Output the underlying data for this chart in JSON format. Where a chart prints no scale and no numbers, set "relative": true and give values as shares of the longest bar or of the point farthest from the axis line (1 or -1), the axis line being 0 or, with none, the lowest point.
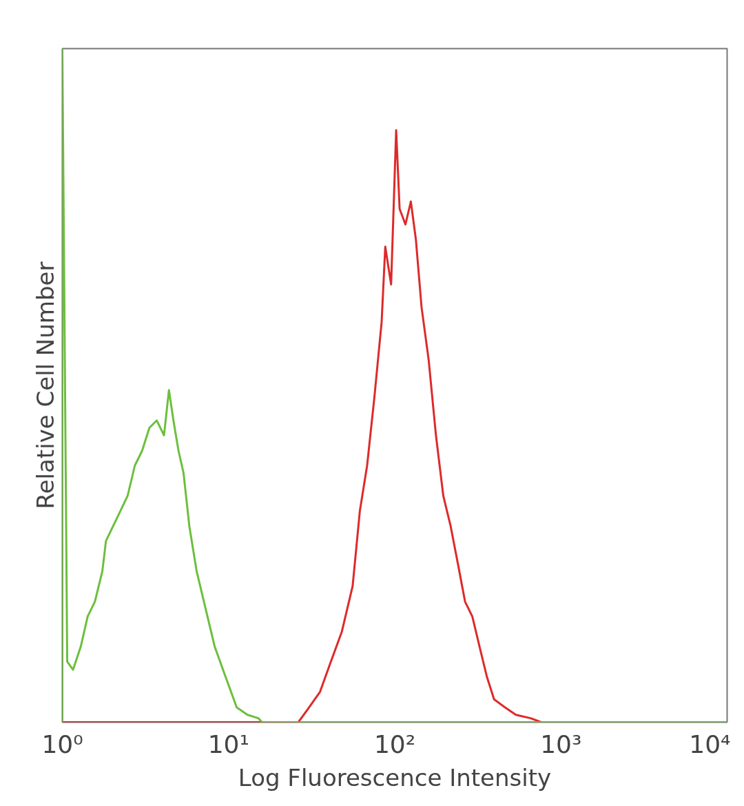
{
  "chart_data": {
    "type": "line",
    "relative": true,
    "log": "x",
    "grid": false,
    "line_style": "solid",
    "marker": "none",
    "xlabel": "Log Fluorescence Intensity",
    "ylabel": "Relative Cell Number",
    "xlim": [
      1,
      10000
    ],
    "xticks": [
      {
        "value": 1,
        "label": "10⁰"
      },
      {
        "value": 10,
        "label": "10¹"
      },
      {
        "value": 100,
        "label": "10²"
      },
      {
        "value": 1000,
        "label": "10³"
      },
      {
        "value": 10000,
        "label": "10⁴"
      }
    ],
    "series": [
      {
        "color": "#dd2a2a",
        "x": [
          1,
          26.3,
          30.5,
          35.5,
          41.3,
          48.0,
          55.8,
          61.7,
          68.2,
          75.4,
          83.4,
          87.7,
          95.1,
          102,
          107,
          116,
          125,
          134,
          145,
          160,
          177,
          196,
          217,
          240,
          265,
          293,
          324,
          359,
          396,
          461,
          536,
          656,
          762
        ],
        "values": [
          0,
          0,
          0.022,
          0.045,
          0.09,
          0.134,
          0.202,
          0.314,
          0.381,
          0.482,
          0.594,
          0.706,
          0.65,
          0.879,
          0.762,
          0.739,
          0.773,
          0.717,
          0.616,
          0.538,
          0.426,
          0.336,
          0.291,
          0.235,
          0.179,
          0.157,
          0.112,
          0.067,
          0.034,
          0.022,
          0.011,
          0.006,
          0
        ]
      },
      {
        "color": "#6cbf3c",
        "x": [
          1,
          1,
          1.07,
          1.16,
          1.29,
          1.42,
          1.57,
          1.74,
          1.83,
          2.02,
          2.24,
          2.47,
          2.73,
          3.02,
          3.34,
          3.7,
          4.09,
          4.38,
          4.66,
          5.0,
          5.36,
          5.81,
          6.43,
          7.11,
          8.26,
          9.61,
          11.2,
          13.0,
          15.1,
          15.9,
          10000
        ],
        "values": [
          0,
          1,
          0.09,
          0.078,
          0.112,
          0.157,
          0.179,
          0.224,
          0.269,
          0.291,
          0.314,
          0.336,
          0.381,
          0.403,
          0.437,
          0.448,
          0.426,
          0.493,
          0.448,
          0.403,
          0.37,
          0.291,
          0.224,
          0.179,
          0.112,
          0.067,
          0.022,
          0.011,
          0.006,
          0,
          0
        ]
      }
    ]
  }
}
